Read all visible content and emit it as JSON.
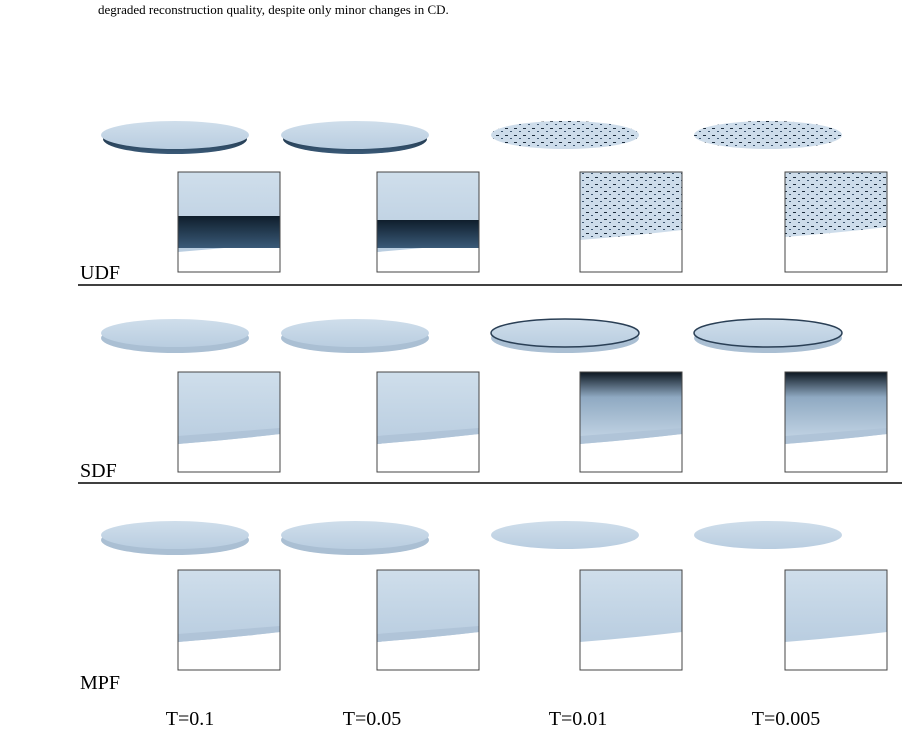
{
  "caption": "degraded reconstruction quality, despite only minor changes in CD.",
  "rows": [
    "UDF",
    "SDF",
    "MPF"
  ],
  "columns": [
    "T=0.1",
    "T=0.05",
    "T=0.01",
    "T=0.005"
  ]
}
